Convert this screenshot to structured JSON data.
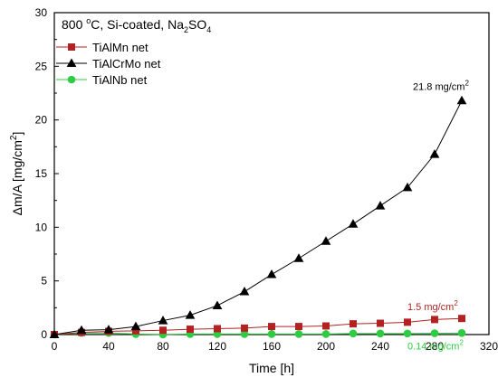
{
  "chart_data": {
    "type": "line",
    "title_parts": {
      "temp_value": "800 ",
      "temp_sup": "o",
      "temp_unit": "C, Si-coated, Na",
      "sub": "2",
      "tail": "SO",
      "sub2": "4"
    },
    "xlabel": "Time [h]",
    "ylabel_parts": {
      "main": "Δm/A [mg/cm",
      "sup": "2",
      "close": "]"
    },
    "xlim": [
      0,
      320
    ],
    "ylim": [
      0,
      30
    ],
    "x_ticks": [
      0,
      40,
      80,
      120,
      160,
      200,
      240,
      280,
      320
    ],
    "y_ticks": [
      0,
      5,
      10,
      15,
      20,
      25,
      30
    ],
    "legend_position": "top-left",
    "colors": {
      "TiAlMn": "#b22222",
      "TiAlCrMo": "#000000",
      "TiAlNb": "#2ecc40"
    },
    "series": [
      {
        "name": "TiAlMn net",
        "marker": "square",
        "x": [
          0,
          20,
          40,
          60,
          80,
          100,
          120,
          140,
          160,
          180,
          200,
          220,
          240,
          260,
          280,
          300
        ],
        "y": [
          0,
          0.2,
          0.3,
          0.35,
          0.4,
          0.5,
          0.55,
          0.6,
          0.75,
          0.75,
          0.8,
          1.0,
          1.05,
          1.15,
          1.4,
          1.5
        ]
      },
      {
        "name": "TiAlCrMo net",
        "marker": "triangle",
        "x": [
          0,
          20,
          40,
          60,
          80,
          100,
          120,
          140,
          160,
          180,
          200,
          220,
          240,
          260,
          280,
          300
        ],
        "y": [
          0,
          0.4,
          0.45,
          0.75,
          1.3,
          1.8,
          2.7,
          4.0,
          5.6,
          7.1,
          8.7,
          10.3,
          12.0,
          13.7,
          16.8,
          21.8
        ]
      },
      {
        "name": "TiAlNb net",
        "marker": "circle",
        "x": [
          0,
          20,
          40,
          60,
          80,
          100,
          120,
          140,
          160,
          180,
          200,
          220,
          240,
          260,
          280,
          300
        ],
        "y": [
          0,
          0.15,
          0.15,
          0.05,
          0.0,
          0.05,
          0.05,
          0.05,
          0.05,
          0.05,
          0.05,
          0.1,
          0.1,
          0.1,
          0.12,
          0.14
        ]
      }
    ],
    "annotations": [
      {
        "series": "TiAlCrMo",
        "value": "21.8 mg/cm",
        "sup": "2",
        "x": 300,
        "y": 21.8
      },
      {
        "series": "TiAlMn",
        "value": "1.5 mg/cm",
        "sup": "2",
        "x": 300,
        "y": 1.5
      },
      {
        "series": "TiAlNb",
        "value": "0.14 mg/cm",
        "sup": "2",
        "x": 300,
        "y": 0.14
      }
    ]
  }
}
